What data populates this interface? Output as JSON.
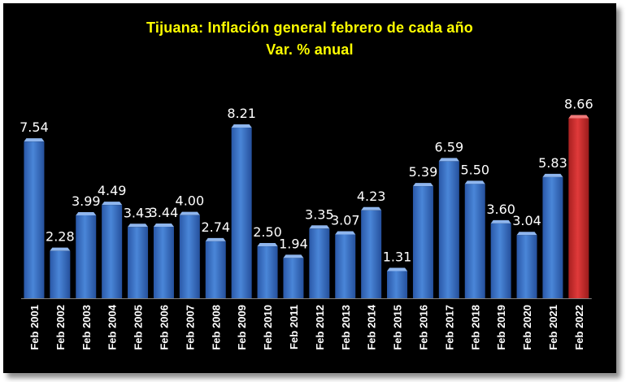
{
  "chart_data": {
    "type": "bar",
    "title": "Tijuana: Inflación general febrero de cada año",
    "subtitle": "Var. % anual",
    "categories": [
      "Feb 2001",
      "Feb 2002",
      "Feb 2003",
      "Feb 2004",
      "Feb 2005",
      "Feb 2006",
      "Feb 2007",
      "Feb 2008",
      "Feb 2009",
      "Feb 2010",
      "Feb 2011",
      "Feb 2012",
      "Feb 2013",
      "Feb 2014",
      "Feb 2015",
      "Feb 2016",
      "Feb 2017",
      "Feb 2018",
      "Feb 2019",
      "Feb 2020",
      "Feb 2021",
      "Feb 2022"
    ],
    "values": [
      7.54,
      2.28,
      3.99,
      4.49,
      3.43,
      3.44,
      4.0,
      2.74,
      8.21,
      2.5,
      1.94,
      3.35,
      3.07,
      4.23,
      1.31,
      5.39,
      6.59,
      5.5,
      3.6,
      3.04,
      5.83,
      8.66
    ],
    "value_labels": [
      "7.54",
      "2.28",
      "3.99",
      "4.49",
      "3.43",
      "3.44",
      "4.00",
      "2.74",
      "8.21",
      "2.50",
      "1.94",
      "3.35",
      "3.07",
      "4.23",
      "1.31",
      "5.39",
      "6.59",
      "5.50",
      "3.60",
      "3.04",
      "5.83",
      "8.66"
    ],
    "ylim": [
      0,
      9.5
    ],
    "xlabel": "",
    "ylabel": "",
    "grid": false,
    "legend": "none",
    "highlight_index": 21,
    "colors": {
      "bar": "#4a86d8",
      "bar_highlight": "#e03a3a",
      "background": "#000000",
      "title": "#ffff00",
      "text": "#ffffff"
    }
  }
}
